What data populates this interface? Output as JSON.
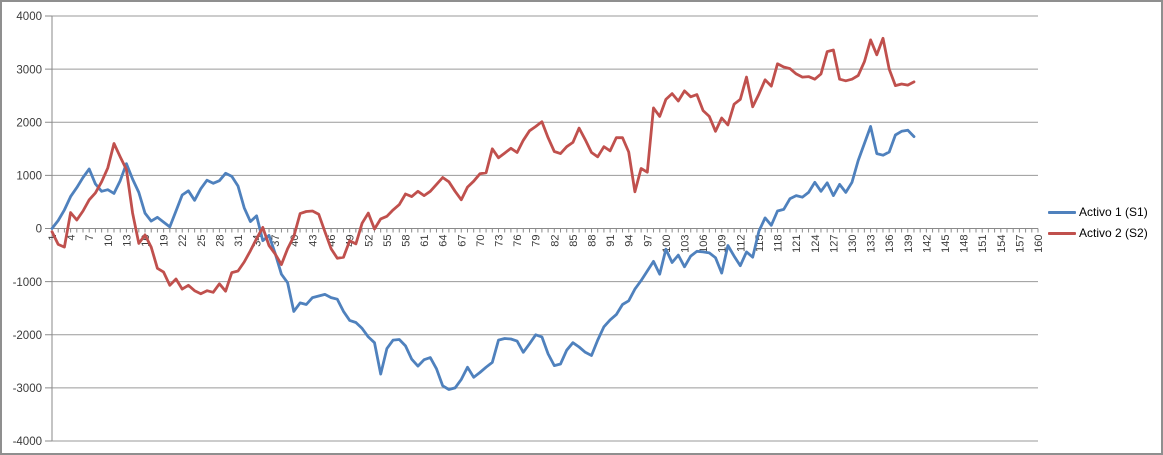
{
  "chart_data": {
    "type": "line",
    "title": "",
    "xlabel": "",
    "ylabel": "",
    "grid": true,
    "legend_position": "right",
    "x_axis": {
      "first_label": 1,
      "last_label": 160,
      "label_step": 3,
      "points_plotted": 140
    },
    "y_axis": {
      "min": -4000,
      "max": 4000,
      "step": 1000
    },
    "colors": {
      "series1": "#4F81BD",
      "series2": "#C0504D",
      "gridline": "#9a9a9a",
      "axis": "#8a8a8a",
      "tick_label": "#3b3b3b",
      "frame_border": "#8f8f8f",
      "background": "#ffffff"
    },
    "series": [
      {
        "name": "Activo 1 (S1)",
        "color": "#4F81BD",
        "x_start": 1,
        "values": [
          0,
          150,
          350,
          600,
          770,
          960,
          1120,
          840,
          700,
          730,
          660,
          900,
          1220,
          930,
          680,
          290,
          140,
          210,
          120,
          30,
          330,
          630,
          710,
          530,
          750,
          910,
          850,
          900,
          1040,
          980,
          800,
          390,
          130,
          240,
          -230,
          -130,
          -470,
          -860,
          -1020,
          -1560,
          -1400,
          -1430,
          -1300,
          -1270,
          -1240,
          -1300,
          -1330,
          -1560,
          -1730,
          -1770,
          -1880,
          -2040,
          -2150,
          -2740,
          -2260,
          -2100,
          -2090,
          -2210,
          -2460,
          -2590,
          -2470,
          -2430,
          -2640,
          -2960,
          -3030,
          -3000,
          -2840,
          -2610,
          -2800,
          -2710,
          -2610,
          -2520,
          -2100,
          -2070,
          -2080,
          -2120,
          -2330,
          -2170,
          -2000,
          -2040,
          -2360,
          -2580,
          -2550,
          -2290,
          -2150,
          -2230,
          -2330,
          -2390,
          -2100,
          -1850,
          -1720,
          -1620,
          -1430,
          -1360,
          -1140,
          -980,
          -800,
          -620,
          -860,
          -390,
          -640,
          -500,
          -720,
          -520,
          -430,
          -440,
          -460,
          -550,
          -840,
          -320,
          -520,
          -700,
          -440,
          -540,
          -50,
          200,
          60,
          330,
          360,
          560,
          620,
          590,
          680,
          870,
          700,
          860,
          620,
          830,
          680,
          870,
          1280,
          1600,
          1920,
          1410,
          1380,
          1440,
          1760,
          1830,
          1850,
          1730
        ]
      },
      {
        "name": "Activo 2 (S2)",
        "color": "#C0504D",
        "x_start": 1,
        "values": [
          -60,
          -300,
          -350,
          300,
          160,
          330,
          540,
          670,
          880,
          1140,
          1600,
          1350,
          1110,
          290,
          -280,
          -120,
          -350,
          -750,
          -820,
          -1070,
          -950,
          -1140,
          -1070,
          -1170,
          -1230,
          -1170,
          -1200,
          -1040,
          -1180,
          -830,
          -800,
          -630,
          -420,
          -190,
          20,
          -320,
          -480,
          -680,
          -380,
          -150,
          280,
          320,
          330,
          270,
          -60,
          -380,
          -560,
          -540,
          -230,
          -290,
          100,
          290,
          -10,
          180,
          230,
          350,
          450,
          650,
          600,
          700,
          620,
          700,
          830,
          960,
          880,
          700,
          540,
          780,
          890,
          1030,
          1050,
          1500,
          1330,
          1420,
          1510,
          1430,
          1660,
          1840,
          1920,
          2010,
          1710,
          1450,
          1410,
          1540,
          1620,
          1890,
          1670,
          1430,
          1350,
          1540,
          1460,
          1710,
          1710,
          1440,
          690,
          1130,
          1060,
          2270,
          2110,
          2430,
          2540,
          2400,
          2590,
          2480,
          2520,
          2220,
          2110,
          1830,
          2080,
          1950,
          2340,
          2430,
          2850,
          2290,
          2530,
          2800,
          2680,
          3100,
          3040,
          3010,
          2910,
          2850,
          2860,
          2810,
          2910,
          3330,
          3360,
          2810,
          2780,
          2810,
          2880,
          3140,
          3550,
          3270,
          3580,
          3000,
          2690,
          2720,
          2700,
          2760
        ]
      }
    ]
  }
}
